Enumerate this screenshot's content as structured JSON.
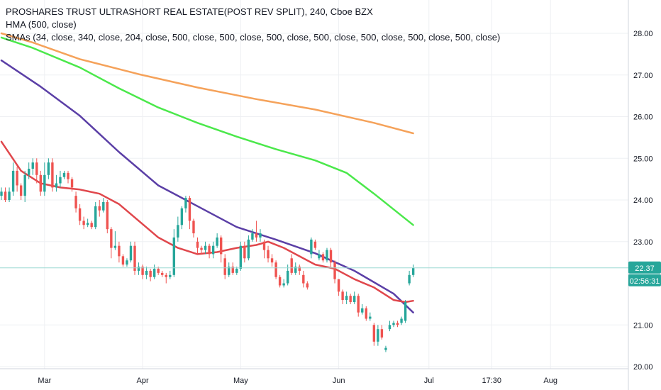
{
  "legend": {
    "title": "PROSHARES TRUST ULTRASHORT REAL ESTATE(POST REV SPLIT), 240, Cboe BZX",
    "hma": "HMA (500, close)",
    "smas": "SMAs (34, close, 340, close, 204, close, 500, close, 500, close, 500, close, 500, close, 500, close, 500, close, 500, close)"
  },
  "colors": {
    "up": "#26a69a",
    "down": "#ef5350",
    "hma": "#5b3fa6",
    "sma_red": "#e0474c",
    "sma_green": "#4be84b",
    "sma_orange": "#f5a25a",
    "price_line": "#9bd8d2",
    "price_tag": "#26a69a",
    "countdown_tag": "#26a69a",
    "grid": "#eef0f3",
    "axis_text": "#131722"
  },
  "price_tag": {
    "value": "22.37",
    "countdown": "02:56:31"
  },
  "chart_data": {
    "type": "line",
    "ylim": [
      19.95,
      28.8
    ],
    "grid": true,
    "y_ticks": [
      "28.00",
      "27.00",
      "26.00",
      "25.00",
      "24.00",
      "23.00",
      "21.00",
      "20.00"
    ],
    "x_ticks": [
      "Mar",
      "Apr",
      "May",
      "Jun",
      "Jul",
      "17:30",
      "Aug"
    ],
    "last_price": 22.37,
    "series": [
      {
        "key": "sma_orange",
        "x": [
          0,
          8,
          20,
          35,
          50,
          65,
          80,
          95,
          105
        ],
        "values": [
          28.0,
          27.78,
          27.38,
          27.02,
          26.7,
          26.42,
          26.17,
          25.85,
          25.6
        ]
      },
      {
        "key": "sma_green",
        "x": [
          0,
          8,
          20,
          30,
          40,
          50,
          60,
          70,
          80,
          88,
          95,
          105
        ],
        "values": [
          27.9,
          27.65,
          27.18,
          26.68,
          26.22,
          25.85,
          25.52,
          25.22,
          24.95,
          24.65,
          24.15,
          23.4
        ]
      },
      {
        "key": "hma",
        "x": [
          0,
          10,
          20,
          30,
          40,
          50,
          60,
          70,
          80,
          90,
          100,
          105
        ],
        "values": [
          27.35,
          26.72,
          26.02,
          25.15,
          24.35,
          23.85,
          23.35,
          23.05,
          22.72,
          22.3,
          21.75,
          21.3
        ]
      },
      {
        "key": "sma_red",
        "x": [
          0,
          5,
          10,
          15,
          20,
          25,
          30,
          35,
          40,
          45,
          50,
          55,
          60,
          65,
          68,
          72,
          76,
          80,
          85,
          90,
          95,
          100,
          103,
          105
        ],
        "values": [
          25.4,
          24.7,
          24.4,
          24.3,
          24.25,
          24.15,
          23.9,
          23.5,
          23.1,
          22.85,
          22.7,
          22.75,
          22.85,
          22.92,
          23.0,
          22.85,
          22.65,
          22.45,
          22.35,
          22.1,
          21.9,
          21.6,
          21.55,
          21.58
        ]
      }
    ],
    "candles": [
      {
        "x": 0,
        "o": 24.1,
        "c": 24.2,
        "h": 24.3,
        "l": 24.0
      },
      {
        "x": 1,
        "o": 24.2,
        "c": 24.0,
        "h": 24.3,
        "l": 23.95
      },
      {
        "x": 2,
        "o": 24.0,
        "c": 24.2,
        "h": 24.3,
        "l": 23.95
      },
      {
        "x": 3,
        "o": 24.2,
        "c": 24.7,
        "h": 24.9,
        "l": 24.1
      },
      {
        "x": 4,
        "o": 24.7,
        "c": 24.35,
        "h": 24.8,
        "l": 24.2
      },
      {
        "x": 5,
        "o": 24.35,
        "c": 24.1,
        "h": 24.4,
        "l": 24.0
      },
      {
        "x": 6,
        "o": 24.1,
        "c": 24.6,
        "h": 24.7,
        "l": 23.95
      },
      {
        "x": 7,
        "o": 24.6,
        "c": 24.75,
        "h": 24.9,
        "l": 24.5
      },
      {
        "x": 8,
        "o": 24.75,
        "c": 24.9,
        "h": 25.0,
        "l": 24.6
      },
      {
        "x": 9,
        "o": 24.9,
        "c": 24.6,
        "h": 25.0,
        "l": 24.4
      },
      {
        "x": 10,
        "o": 24.6,
        "c": 24.2,
        "h": 24.7,
        "l": 24.1
      },
      {
        "x": 11,
        "o": 24.2,
        "c": 24.6,
        "h": 24.9,
        "l": 24.1
      },
      {
        "x": 12,
        "o": 24.6,
        "c": 24.9,
        "h": 25.0,
        "l": 24.5
      },
      {
        "x": 13,
        "o": 24.9,
        "c": 24.3,
        "h": 25.0,
        "l": 24.2
      },
      {
        "x": 14,
        "o": 24.3,
        "c": 24.4,
        "h": 24.6,
        "l": 24.2
      },
      {
        "x": 15,
        "o": 24.4,
        "c": 24.55,
        "h": 24.7,
        "l": 24.3
      },
      {
        "x": 16,
        "o": 24.55,
        "c": 24.65,
        "h": 24.7,
        "l": 24.5
      },
      {
        "x": 17,
        "o": 24.65,
        "c": 24.5,
        "h": 24.7,
        "l": 24.4
      },
      {
        "x": 18,
        "o": 24.5,
        "c": 24.3,
        "h": 24.55,
        "l": 24.2
      },
      {
        "x": 19,
        "o": 24.1,
        "c": 23.8,
        "h": 24.2,
        "l": 23.7
      },
      {
        "x": 20,
        "o": 23.8,
        "c": 23.5,
        "h": 23.9,
        "l": 23.4
      },
      {
        "x": 21,
        "o": 23.5,
        "c": 23.4,
        "h": 23.6,
        "l": 23.3
      },
      {
        "x": 22,
        "o": 23.4,
        "c": 23.45,
        "h": 23.55,
        "l": 23.35
      },
      {
        "x": 23,
        "o": 23.45,
        "c": 23.35,
        "h": 23.5,
        "l": 23.3
      },
      {
        "x": 24,
        "o": 23.35,
        "c": 23.85,
        "h": 23.95,
        "l": 23.3
      },
      {
        "x": 25,
        "o": 23.85,
        "c": 23.75,
        "h": 24.0,
        "l": 23.6
      },
      {
        "x": 26,
        "o": 23.75,
        "c": 23.95,
        "h": 24.05,
        "l": 23.7
      },
      {
        "x": 27,
        "o": 23.95,
        "c": 23.3,
        "h": 24.0,
        "l": 23.2
      },
      {
        "x": 28,
        "o": 23.3,
        "c": 22.85,
        "h": 23.35,
        "l": 22.6
      },
      {
        "x": 29,
        "o": 22.85,
        "c": 22.9,
        "h": 23.25,
        "l": 22.8
      },
      {
        "x": 30,
        "o": 22.9,
        "c": 22.65,
        "h": 23.0,
        "l": 22.5
      },
      {
        "x": 31,
        "o": 22.65,
        "c": 22.45,
        "h": 22.7,
        "l": 22.4
      },
      {
        "x": 32,
        "o": 22.45,
        "c": 22.55,
        "h": 22.6,
        "l": 22.4
      },
      {
        "x": 33,
        "o": 22.55,
        "c": 22.9,
        "h": 23.0,
        "l": 22.5
      },
      {
        "x": 34,
        "o": 22.9,
        "c": 22.3,
        "h": 23.0,
        "l": 22.2
      },
      {
        "x": 35,
        "o": 22.3,
        "c": 22.4,
        "h": 22.5,
        "l": 22.2
      },
      {
        "x": 36,
        "o": 22.4,
        "c": 22.2,
        "h": 22.45,
        "l": 22.1
      },
      {
        "x": 37,
        "o": 22.2,
        "c": 22.3,
        "h": 22.4,
        "l": 22.1
      },
      {
        "x": 38,
        "o": 22.3,
        "c": 22.15,
        "h": 22.35,
        "l": 22.05
      },
      {
        "x": 39,
        "o": 22.15,
        "c": 22.35,
        "h": 22.45,
        "l": 22.1
      },
      {
        "x": 40,
        "o": 22.35,
        "c": 22.25,
        "h": 22.4,
        "l": 22.2
      },
      {
        "x": 41,
        "o": 22.25,
        "c": 22.2,
        "h": 22.3,
        "l": 22.15
      },
      {
        "x": 42,
        "o": 22.2,
        "c": 22.15,
        "h": 22.25,
        "l": 22.0
      },
      {
        "x": 43,
        "o": 22.15,
        "c": 22.2,
        "h": 22.3,
        "l": 22.1
      },
      {
        "x": 44,
        "o": 22.2,
        "c": 23.1,
        "h": 23.3,
        "l": 22.15
      },
      {
        "x": 45,
        "o": 23.1,
        "c": 23.4,
        "h": 23.6,
        "l": 23.0
      },
      {
        "x": 46,
        "o": 23.4,
        "c": 23.8,
        "h": 23.85,
        "l": 23.3
      },
      {
        "x": 47,
        "o": 23.8,
        "c": 24.05,
        "h": 24.1,
        "l": 23.7
      },
      {
        "x": 48,
        "o": 24.05,
        "c": 23.5,
        "h": 24.1,
        "l": 23.3
      },
      {
        "x": 49,
        "o": 23.5,
        "c": 23.2,
        "h": 23.55,
        "l": 23.1
      },
      {
        "x": 50,
        "o": 23.0,
        "c": 22.85,
        "h": 23.1,
        "l": 22.7
      },
      {
        "x": 51,
        "o": 22.85,
        "c": 22.8,
        "h": 22.9,
        "l": 22.7
      },
      {
        "x": 52,
        "o": 22.8,
        "c": 22.9,
        "h": 23.0,
        "l": 22.7
      },
      {
        "x": 53,
        "o": 22.9,
        "c": 22.7,
        "h": 22.95,
        "l": 22.6
      },
      {
        "x": 54,
        "o": 22.7,
        "c": 22.9,
        "h": 23.0,
        "l": 22.6
      },
      {
        "x": 55,
        "o": 22.9,
        "c": 23.1,
        "h": 23.2,
        "l": 22.85
      },
      {
        "x": 56,
        "o": 23.1,
        "c": 22.7,
        "h": 23.15,
        "l": 22.5
      },
      {
        "x": 57,
        "o": 22.6,
        "c": 22.2,
        "h": 22.7,
        "l": 22.1
      },
      {
        "x": 58,
        "o": 22.2,
        "c": 22.4,
        "h": 22.5,
        "l": 22.15
      },
      {
        "x": 59,
        "o": 22.4,
        "c": 22.25,
        "h": 22.5,
        "l": 22.2
      },
      {
        "x": 60,
        "o": 22.25,
        "c": 22.35,
        "h": 22.4,
        "l": 22.2
      },
      {
        "x": 61,
        "o": 22.35,
        "c": 22.9,
        "h": 23.0,
        "l": 22.3
      },
      {
        "x": 62,
        "o": 22.9,
        "c": 22.6,
        "h": 23.0,
        "l": 22.5
      },
      {
        "x": 63,
        "o": 22.6,
        "c": 23.05,
        "h": 23.15,
        "l": 22.55
      },
      {
        "x": 64,
        "o": 23.05,
        "c": 23.2,
        "h": 23.3,
        "l": 23.0
      },
      {
        "x": 65,
        "o": 23.2,
        "c": 23.1,
        "h": 23.5,
        "l": 23.0
      },
      {
        "x": 66,
        "o": 23.1,
        "c": 23.2,
        "h": 23.3,
        "l": 23.0
      },
      {
        "x": 67,
        "o": 23.0,
        "c": 22.8,
        "h": 23.05,
        "l": 22.6
      },
      {
        "x": 68,
        "o": 22.8,
        "c": 22.6,
        "h": 22.9,
        "l": 22.5
      },
      {
        "x": 69,
        "o": 22.6,
        "c": 22.5,
        "h": 22.7,
        "l": 22.4
      },
      {
        "x": 70,
        "o": 22.5,
        "c": 22.15,
        "h": 22.55,
        "l": 22.1
      },
      {
        "x": 71,
        "o": 22.15,
        "c": 21.95,
        "h": 22.2,
        "l": 21.9
      },
      {
        "x": 72,
        "o": 21.95,
        "c": 22.0,
        "h": 22.1,
        "l": 21.9
      },
      {
        "x": 73,
        "o": 22.0,
        "c": 22.3,
        "h": 22.45,
        "l": 21.95
      },
      {
        "x": 74,
        "o": 22.6,
        "c": 22.25,
        "h": 22.7,
        "l": 22.2
      },
      {
        "x": 75,
        "o": 22.25,
        "c": 22.4,
        "h": 22.5,
        "l": 22.2
      },
      {
        "x": 76,
        "o": 22.4,
        "c": 22.3,
        "h": 22.45,
        "l": 22.2
      },
      {
        "x": 77,
        "o": 22.2,
        "c": 22.0,
        "h": 22.3,
        "l": 21.9
      },
      {
        "x": 78,
        "o": 22.0,
        "c": 21.9,
        "h": 22.05,
        "l": 21.85
      },
      {
        "x": 79,
        "o": 22.7,
        "c": 23.05,
        "h": 23.1,
        "l": 22.6
      },
      {
        "x": 80,
        "o": 23.0,
        "c": 22.85,
        "h": 23.05,
        "l": 22.8
      },
      {
        "x": 81,
        "o": 22.6,
        "c": 22.7,
        "h": 22.8,
        "l": 22.55
      },
      {
        "x": 82,
        "o": 22.7,
        "c": 22.55,
        "h": 22.75,
        "l": 22.5
      },
      {
        "x": 83,
        "o": 22.55,
        "c": 22.8,
        "h": 22.85,
        "l": 22.5
      },
      {
        "x": 84,
        "o": 22.8,
        "c": 22.5,
        "h": 22.85,
        "l": 22.4
      },
      {
        "x": 85,
        "o": 22.5,
        "c": 22.1,
        "h": 22.55,
        "l": 22.0
      },
      {
        "x": 86,
        "o": 22.1,
        "c": 21.8,
        "h": 22.1,
        "l": 21.7
      },
      {
        "x": 87,
        "o": 21.8,
        "c": 21.6,
        "h": 21.85,
        "l": 21.5
      },
      {
        "x": 88,
        "o": 21.6,
        "c": 21.7,
        "h": 21.8,
        "l": 21.5
      },
      {
        "x": 89,
        "o": 21.7,
        "c": 21.55,
        "h": 21.75,
        "l": 21.5
      },
      {
        "x": 90,
        "o": 21.55,
        "c": 21.7,
        "h": 21.8,
        "l": 21.5
      },
      {
        "x": 91,
        "o": 21.7,
        "c": 21.3,
        "h": 21.75,
        "l": 21.2
      },
      {
        "x": 92,
        "o": 21.3,
        "c": 21.4,
        "h": 21.5,
        "l": 21.25
      },
      {
        "x": 93,
        "o": 21.4,
        "c": 21.15,
        "h": 21.45,
        "l": 21.1
      },
      {
        "x": 94,
        "o": 21.15,
        "c": 21.2,
        "h": 21.3,
        "l": 21.1
      },
      {
        "x": 95,
        "o": 21.0,
        "c": 20.6,
        "h": 21.05,
        "l": 20.5
      },
      {
        "x": 96,
        "o": 20.6,
        "c": 20.9,
        "h": 21.0,
        "l": 20.5
      },
      {
        "x": 97,
        "o": 20.9,
        "c": 20.7,
        "h": 21.0,
        "l": 20.65
      },
      {
        "x": 98,
        "o": 20.4,
        "c": 20.45,
        "h": 20.5,
        "l": 20.35
      },
      {
        "x": 99,
        "o": 20.9,
        "c": 21.0,
        "h": 21.1,
        "l": 20.85
      },
      {
        "x": 100,
        "o": 21.0,
        "c": 21.05,
        "h": 21.1,
        "l": 20.95
      },
      {
        "x": 101,
        "o": 21.05,
        "c": 21.0,
        "h": 21.1,
        "l": 20.95
      },
      {
        "x": 102,
        "o": 21.05,
        "c": 21.15,
        "h": 21.2,
        "l": 21.0
      },
      {
        "x": 103,
        "o": 21.1,
        "c": 21.55,
        "h": 21.6,
        "l": 21.05
      },
      {
        "x": 104,
        "o": 22.0,
        "c": 22.2,
        "h": 22.3,
        "l": 21.95
      },
      {
        "x": 105,
        "o": 22.2,
        "c": 22.37,
        "h": 22.45,
        "l": 22.15
      }
    ]
  }
}
